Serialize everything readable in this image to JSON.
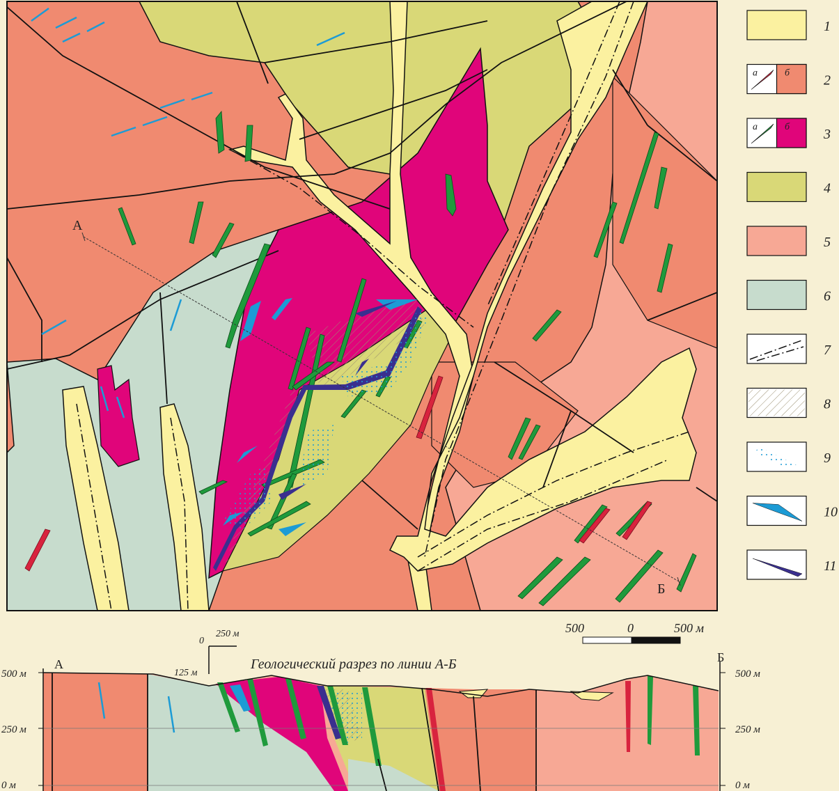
{
  "map": {
    "label_a": "А",
    "label_b": "Б",
    "colors": {
      "alluvium": "#fbf1a0",
      "unit2b": "#f08a70",
      "unit3b": "#e0057a",
      "unit4": "#d9d877",
      "unit5": "#f7a895",
      "unit6": "#c7dccd",
      "dyke_green": "#1f9a3c",
      "dyke_red": "#d8233e",
      "blue": "#1c9bd5",
      "violet": "#3a2f8f"
    }
  },
  "legend": {
    "items": [
      {
        "num": "1",
        "fill": "#fbf1a0"
      },
      {
        "num": "2",
        "sub_a": "а",
        "sub_b": "б",
        "fill": "#f08a70",
        "lens": "#d8233e"
      },
      {
        "num": "3",
        "sub_a": "а",
        "sub_b": "б",
        "fill": "#e0057a",
        "lens": "#1f9a3c"
      },
      {
        "num": "4",
        "fill": "#d9d877"
      },
      {
        "num": "5",
        "fill": "#f7a895"
      },
      {
        "num": "6",
        "fill": "#c7dccd"
      },
      {
        "num": "7",
        "icon": "fault-dashdot"
      },
      {
        "num": "8",
        "icon": "hatch"
      },
      {
        "num": "9",
        "icon": "dots"
      },
      {
        "num": "10",
        "icon": "blue-lens"
      },
      {
        "num": "11",
        "icon": "violet-lens"
      }
    ]
  },
  "scale_bar": {
    "left": "500",
    "mid": "0",
    "right": "500 м"
  },
  "section": {
    "title": "Геологический разрез по линии А-Б",
    "label_a": "А",
    "label_b": "Б",
    "elevations_left": [
      "500 м",
      "250 м",
      "0 м"
    ],
    "elevations_right": [
      "500 м",
      "250 м",
      "0 м"
    ],
    "vscale": {
      "zero": "0",
      "h": "250 м",
      "v": "125 м"
    }
  }
}
